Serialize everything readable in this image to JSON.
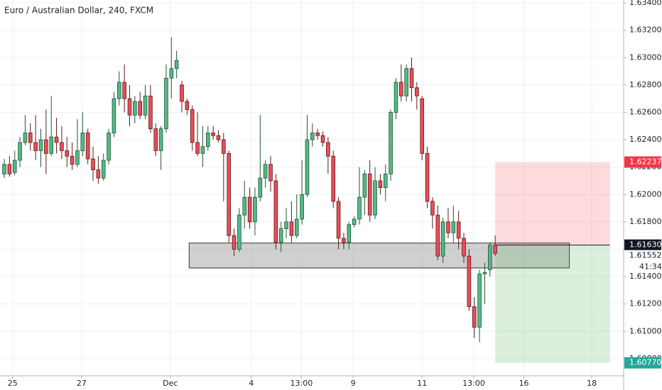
{
  "chart_data": {
    "type": "candlestick",
    "title": "Euro / Australian Dollar, 240, FXCM",
    "x": [
      0,
      1,
      2,
      3,
      4,
      5,
      6,
      7,
      8,
      9,
      10,
      11,
      12,
      13,
      14,
      15,
      16,
      17,
      18,
      19,
      20,
      21,
      22,
      23,
      24,
      25,
      26,
      27,
      28,
      29,
      30,
      31,
      32,
      33,
      34,
      35,
      36,
      37,
      38,
      39,
      40,
      41,
      42,
      43,
      44,
      45,
      46,
      47,
      48,
      49,
      50,
      51,
      52,
      53,
      54,
      55,
      56,
      57,
      58,
      59,
      60,
      61,
      62,
      63,
      64,
      65,
      66,
      67,
      68,
      69,
      70,
      71,
      72,
      73,
      74,
      75,
      76,
      77,
      78,
      79,
      80,
      81,
      82,
      83,
      84,
      85,
      86,
      87,
      88,
      89,
      90,
      91,
      92,
      93,
      94
    ],
    "open": [
      1.6215,
      1.6222,
      1.6216,
      1.6225,
      1.6238,
      1.6245,
      1.6238,
      1.6232,
      1.624,
      1.623,
      1.6242,
      1.6238,
      1.6232,
      1.6228,
      1.6222,
      1.6232,
      1.6245,
      1.6226,
      1.6218,
      1.6212,
      1.6225,
      1.6245,
      1.627,
      1.6282,
      1.627,
      1.6258,
      1.6268,
      1.6258,
      1.6272,
      1.6248,
      1.6232,
      1.6248,
      1.6285,
      1.6292,
      1.628,
      1.6268,
      1.6262,
      1.6238,
      1.623,
      1.6235,
      1.6245,
      1.6243,
      1.624,
      1.623,
      1.617,
      1.616,
      1.6185,
      1.6198,
      1.618,
      1.6198,
      1.6212,
      1.6222,
      1.621,
      1.6165,
      1.6175,
      1.618,
      1.617,
      1.6182,
      1.62,
      1.624,
      1.6245,
      1.6243,
      1.6238,
      1.6228,
      1.6195,
      1.6168,
      1.6165,
      1.6178,
      1.6182,
      1.6198,
      1.6215,
      1.6185,
      1.621,
      1.6205,
      1.6215,
      1.626,
      1.6282,
      1.6272,
      1.6292,
      1.6278,
      1.627,
      1.623,
      1.6195,
      1.6185,
      1.6155,
      1.618,
      1.6172,
      1.618,
      1.6168,
      1.6155,
      1.6118,
      1.6103,
      1.6142,
      1.6145,
      1.6163
    ],
    "high": [
      1.6226,
      1.6228,
      1.6232,
      1.6242,
      1.6258,
      1.6252,
      1.6258,
      1.6248,
      1.6262,
      1.6272,
      1.6256,
      1.625,
      1.6242,
      1.6238,
      1.6255,
      1.626,
      1.6248,
      1.6235,
      1.6228,
      1.623,
      1.6248,
      1.6275,
      1.629,
      1.6295,
      1.628,
      1.6272,
      1.6275,
      1.628,
      1.628,
      1.6252,
      1.625,
      1.6295,
      1.6315,
      1.6305,
      1.6283,
      1.627,
      1.6265,
      1.626,
      1.625,
      1.625,
      1.625,
      1.6247,
      1.6245,
      1.6232,
      1.6175,
      1.619,
      1.621,
      1.6205,
      1.6205,
      1.6258,
      1.6225,
      1.6228,
      1.6215,
      1.618,
      1.619,
      1.6195,
      1.62,
      1.6225,
      1.6258,
      1.6252,
      1.6248,
      1.6246,
      1.6242,
      1.6232,
      1.6198,
      1.6172,
      1.618,
      1.6184,
      1.622,
      1.6218,
      1.6225,
      1.622,
      1.6215,
      1.6222,
      1.6262,
      1.6285,
      1.6295,
      1.6295,
      1.63,
      1.6282,
      1.6272,
      1.6235,
      1.6198,
      1.6192,
      1.6183,
      1.619,
      1.6192,
      1.6188,
      1.6172,
      1.616,
      1.6125,
      1.6145,
      1.615,
      1.6165,
      1.617
    ],
    "low": [
      1.6212,
      1.6213,
      1.6214,
      1.622,
      1.6236,
      1.6232,
      1.6225,
      1.622,
      1.6215,
      1.6228,
      1.623,
      1.6226,
      1.622,
      1.6218,
      1.622,
      1.6228,
      1.6222,
      1.621,
      1.6208,
      1.621,
      1.6222,
      1.6242,
      1.6265,
      1.626,
      1.625,
      1.6252,
      1.6255,
      1.6255,
      1.6245,
      1.6228,
      1.6218,
      1.6245,
      1.627,
      1.6285,
      1.626,
      1.6258,
      1.6232,
      1.6228,
      1.622,
      1.6232,
      1.624,
      1.6238,
      1.6195,
      1.6165,
      1.6155,
      1.6158,
      1.6175,
      1.6175,
      1.617,
      1.6195,
      1.6205,
      1.6202,
      1.616,
      1.6158,
      1.6168,
      1.6165,
      1.6168,
      1.6178,
      1.6198,
      1.6235,
      1.624,
      1.6235,
      1.6215,
      1.619,
      1.616,
      1.616,
      1.616,
      1.6176,
      1.6178,
      1.6185,
      1.618,
      1.6182,
      1.62,
      1.6195,
      1.621,
      1.6255,
      1.6268,
      1.6268,
      1.6268,
      1.6262,
      1.6225,
      1.619,
      1.6175,
      1.6152,
      1.615,
      1.6168,
      1.6165,
      1.616,
      1.615,
      1.6115,
      1.6095,
      1.6092,
      1.612,
      1.614,
      1.6155
    ],
    "close": [
      1.6222,
      1.6215,
      1.6225,
      1.6238,
      1.6245,
      1.6238,
      1.6232,
      1.624,
      1.623,
      1.6242,
      1.6238,
      1.6232,
      1.6228,
      1.6222,
      1.6232,
      1.6245,
      1.6226,
      1.6218,
      1.6212,
      1.6225,
      1.6245,
      1.627,
      1.6282,
      1.627,
      1.6258,
      1.6268,
      1.6258,
      1.6272,
      1.6248,
      1.6232,
      1.6248,
      1.6285,
      1.6292,
      1.6298,
      1.6268,
      1.6262,
      1.6238,
      1.623,
      1.6235,
      1.6245,
      1.6243,
      1.624,
      1.623,
      1.617,
      1.616,
      1.6185,
      1.6198,
      1.618,
      1.6198,
      1.6212,
      1.6222,
      1.621,
      1.6165,
      1.6175,
      1.618,
      1.617,
      1.6182,
      1.62,
      1.624,
      1.6245,
      1.6243,
      1.6238,
      1.6228,
      1.6195,
      1.6168,
      1.6165,
      1.6178,
      1.6182,
      1.6198,
      1.6215,
      1.6185,
      1.621,
      1.6205,
      1.6215,
      1.626,
      1.6282,
      1.6272,
      1.6292,
      1.6278,
      1.6272,
      1.623,
      1.6195,
      1.6185,
      1.6155,
      1.618,
      1.6172,
      1.618,
      1.6168,
      1.6155,
      1.6118,
      1.6103,
      1.6142,
      1.6143,
      1.6163,
      1.6157
    ],
    "up_color": "#53b987",
    "down_color": "#eb4d5c",
    "up_border": "#225437",
    "down_border": "#5b1a13",
    "xlim": [
      -0.82,
      118.6
    ],
    "xticks": [
      {
        "value": 1.6,
        "label": "25"
      },
      {
        "value": 14.8,
        "label": "27"
      },
      {
        "value": 31.8,
        "label": "Dec"
      },
      {
        "value": 47.3,
        "label": "4"
      },
      {
        "value": 56.9,
        "label": "13:00"
      },
      {
        "value": 66.8,
        "label": "9"
      },
      {
        "value": 80,
        "label": "11"
      },
      {
        "value": 89.9,
        "label": "13:00"
      },
      {
        "value": 99.5,
        "label": "16"
      },
      {
        "value": 112.5,
        "label": "18"
      }
    ],
    "ylim": [
      1.60675,
      1.63421
    ],
    "yticks": [
      {
        "value": 1.608,
        "label": "1.60800"
      },
      {
        "value": 1.61,
        "label": "1.61000"
      },
      {
        "value": 1.612,
        "label": "1.61200"
      },
      {
        "value": 1.614,
        "label": "1.61400"
      },
      {
        "value": 1.616,
        "label": "1.61600"
      },
      {
        "value": 1.618,
        "label": "1.61800"
      },
      {
        "value": 1.62,
        "label": "1.62000"
      },
      {
        "value": 1.622,
        "label": "1.62200"
      },
      {
        "value": 1.624,
        "label": "1.62400"
      },
      {
        "value": 1.626,
        "label": "1.62600"
      },
      {
        "value": 1.628,
        "label": "1.62800"
      },
      {
        "value": 1.63,
        "label": "1.63000"
      },
      {
        "value": 1.632,
        "label": "1.63200"
      },
      {
        "value": 1.634,
        "label": "1.63400"
      }
    ],
    "grid": true,
    "zone": {
      "x0": 35.4,
      "x1": 108.2,
      "top": 1.61645,
      "bottom": 1.61463
    },
    "position": {
      "x0": 94,
      "x1": 116,
      "entry": 1.6163,
      "stop": 1.62237,
      "target": 1.6077
    },
    "price_labels": [
      {
        "value": 1.62237,
        "label": "1.62237",
        "color": "#f23645"
      },
      {
        "value": 1.6163,
        "label": "1.61630",
        "color": "#131722"
      },
      {
        "value": 1.61552,
        "label": "1.61552",
        "color": "#ffffff"
      },
      {
        "value": 1.6077,
        "label": "1.60770",
        "color": "#26a69a"
      }
    ],
    "countdown": "41:34"
  }
}
